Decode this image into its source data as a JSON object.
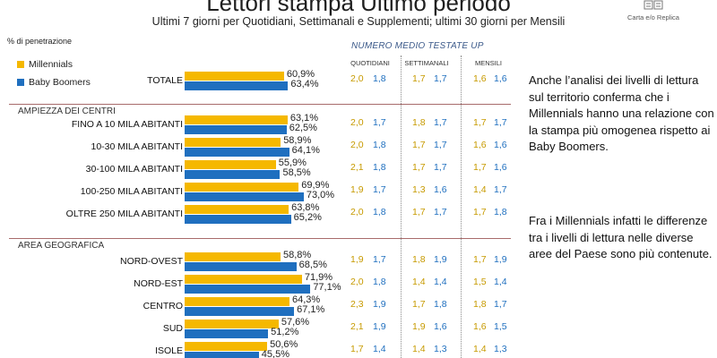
{
  "header": {
    "title": "Lettori stampa Ultimo periodo",
    "subtitle": "Ultimi 7 giorni per Quotidiani, Settimanali e Supplementi; ultimi 30 giorni per Mensili",
    "corner_label": "Carta e/o Replica",
    "corner_icon": "newspaper-icon"
  },
  "colors": {
    "millennials": "#f5b800",
    "baby_boomers": "#1f6fbf"
  },
  "chart_data": {
    "type": "bar",
    "orientation": "horizontal",
    "ylabel": "% di penetrazione",
    "legend": [
      "Millennials",
      "Baby Boomers"
    ],
    "legend_position": "top-left",
    "sections": [
      {
        "title": "",
        "rows": [
          {
            "label": "TOTALE",
            "millennials": "60,9%",
            "baby_boomers": "63,4%"
          }
        ]
      },
      {
        "title": "AMPIEZZA DEI CENTRI",
        "rows": [
          {
            "label": "FINO A 10 MILA ABITANTI",
            "millennials": "63,1%",
            "baby_boomers": "62,5%"
          },
          {
            "label": "10-30 MILA ABITANTI",
            "millennials": "58,9%",
            "baby_boomers": "64,1%"
          },
          {
            "label": "30-100 MILA ABITANTI",
            "millennials": "55,9%",
            "baby_boomers": "58,5%"
          },
          {
            "label": "100-250 MILA ABITANTI",
            "millennials": "69,9%",
            "baby_boomers": "73,0%"
          },
          {
            "label": "OLTRE 250 MILA ABITANTI",
            "millennials": "63,8%",
            "baby_boomers": "65,2%"
          }
        ]
      },
      {
        "title": "AREA GEOGRAFICA",
        "rows": [
          {
            "label": "NORD-OVEST",
            "millennials": "58,8%",
            "baby_boomers": "68,5%"
          },
          {
            "label": "NORD-EST",
            "millennials": "71,9%",
            "baby_boomers": "77,1%"
          },
          {
            "label": "CENTRO",
            "millennials": "64,3%",
            "baby_boomers": "67,1%"
          },
          {
            "label": "SUD",
            "millennials": "57,6%",
            "baby_boomers": "51,2%"
          },
          {
            "label": "ISOLE",
            "millennials": "50,6%",
            "baby_boomers": "45,5%"
          }
        ]
      }
    ]
  },
  "table": {
    "title": "NUMERO MEDIO TESTATE UP",
    "columns": [
      "QUOTIDIANI",
      "SETTIMANALI",
      "MENSILI"
    ],
    "rows": [
      [
        "2,0",
        "1,8",
        "1,7",
        "1,7",
        "1,6",
        "1,6"
      ],
      [
        "2,0",
        "1,7",
        "1,8",
        "1,7",
        "1,7",
        "1,7"
      ],
      [
        "2,0",
        "1,8",
        "1,7",
        "1,7",
        "1,6",
        "1,6"
      ],
      [
        "2,1",
        "1,8",
        "1,7",
        "1,7",
        "1,7",
        "1,6"
      ],
      [
        "1,9",
        "1,7",
        "1,3",
        "1,6",
        "1,4",
        "1,7"
      ],
      [
        "2,0",
        "1,8",
        "1,7",
        "1,7",
        "1,7",
        "1,8"
      ],
      [
        "1,9",
        "1,7",
        "1,8",
        "1,9",
        "1,7",
        "1,9"
      ],
      [
        "2,0",
        "1,8",
        "1,4",
        "1,4",
        "1,5",
        "1,4"
      ],
      [
        "2,3",
        "1,9",
        "1,7",
        "1,8",
        "1,8",
        "1,7"
      ],
      [
        "2,1",
        "1,9",
        "1,9",
        "1,6",
        "1,6",
        "1,5"
      ],
      [
        "1,7",
        "1,4",
        "1,4",
        "1,3",
        "1,4",
        "1,3"
      ]
    ]
  },
  "notes": [
    "Anche l’analisi dei livelli di lettura sul territorio conferma che i Millennials hanno una relazione con la stampa più omogenea rispetto ai Baby Boomers.",
    "Fra i Millennials infatti le differenze tra i livelli di lettura nelle diverse aree del Paese sono più contenute."
  ]
}
